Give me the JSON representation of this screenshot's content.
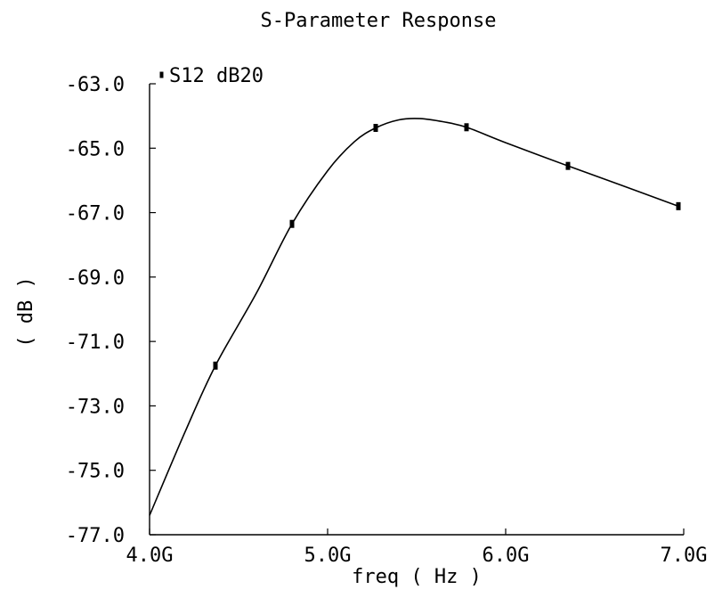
{
  "chart_data": {
    "type": "line",
    "title": "S-Parameter Response",
    "xlabel": "freq ( Hz )",
    "ylabel": "( dB )",
    "xlim": [
      4.0,
      7.0
    ],
    "ylim": [
      -77.0,
      -63.0
    ],
    "x_ticks": [
      "4.0G",
      "5.0G",
      "6.0G",
      "7.0G"
    ],
    "x_tick_values": [
      4.0,
      5.0,
      6.0,
      7.0
    ],
    "y_ticks": [
      "-63.0",
      "-65.0",
      "-67.0",
      "-69.0",
      "-71.0",
      "-73.0",
      "-75.0",
      "-77.0"
    ],
    "y_tick_values": [
      -63.0,
      -65.0,
      -67.0,
      -69.0,
      -71.0,
      -73.0,
      -75.0,
      -77.0
    ],
    "grid": false,
    "legend_position": "top-left",
    "series": [
      {
        "name": "S12 dB20",
        "legend_label": "S12 dB20",
        "x_unit": "GHz",
        "curve_x": [
          4.0,
          4.2,
          4.37,
          4.6,
          4.8,
          5.0,
          5.15,
          5.27,
          5.4,
          5.52,
          5.65,
          5.78,
          6.0,
          6.35,
          6.65,
          6.97
        ],
        "curve_y": [
          -76.4,
          -73.8,
          -71.75,
          -69.5,
          -67.35,
          -65.7,
          -64.8,
          -64.37,
          -64.12,
          -64.08,
          -64.18,
          -64.35,
          -64.83,
          -65.55,
          -66.15,
          -66.8
        ],
        "markers_x": [
          4.37,
          4.8,
          5.27,
          5.78,
          6.35,
          6.97
        ],
        "markers_y": [
          -71.75,
          -67.35,
          -64.37,
          -64.35,
          -65.55,
          -66.8
        ]
      }
    ],
    "colors": {
      "line": "#000000",
      "background": "#ffffff"
    }
  }
}
